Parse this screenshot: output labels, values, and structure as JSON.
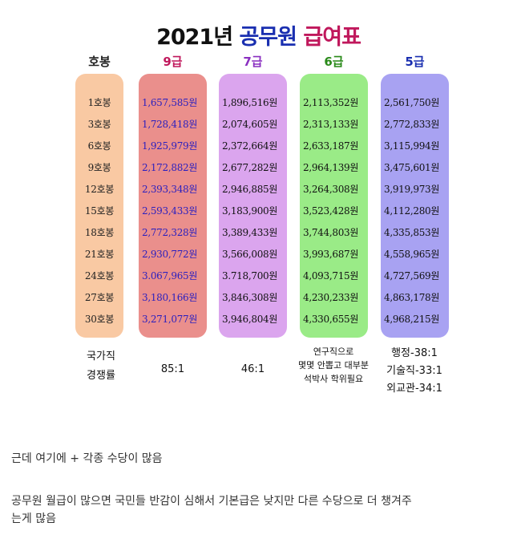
{
  "title": {
    "year": "2021년",
    "part2": "공무원",
    "part3": "급여표"
  },
  "headers": {
    "ho": "호봉",
    "g9": "9급",
    "g7": "7급",
    "g6": "6급",
    "g5": "5급"
  },
  "header_colors": {
    "ho": "#222222",
    "g9": "#c0185c",
    "g7": "#8a2fc0",
    "g6": "#2a8a1a",
    "g5": "#1a2fb0"
  },
  "rows": [
    {
      "ho": "1호봉",
      "g9": "1,657,585원",
      "g7": "1,896,516원",
      "g6": "2,113,352원",
      "g5": "2,561,750원"
    },
    {
      "ho": "3호봉",
      "g9": "1,728,418원",
      "g7": "2,074,605원",
      "g6": "2,313,133원",
      "g5": "2,772,833원"
    },
    {
      "ho": "6호봉",
      "g9": "1,925,979원",
      "g7": "2,372,664원",
      "g6": "2,633,187원",
      "g5": "3,115,994원"
    },
    {
      "ho": "9호봉",
      "g9": "2,172,882원",
      "g7": "2,677,282원",
      "g6": "2,964,139원",
      "g5": "3,475,601원"
    },
    {
      "ho": "12호봉",
      "g9": "2,393,348원",
      "g7": "2,946,885원",
      "g6": "3,264,308원",
      "g5": "3,919,973원"
    },
    {
      "ho": "15호봉",
      "g9": "2,593,433원",
      "g7": "3,183,900원",
      "g6": "3,523,428원",
      "g5": "4,112,280원"
    },
    {
      "ho": "18호봉",
      "g9": "2,772,328원",
      "g7": "3,389,433원",
      "g6": "3,744,803원",
      "g5": "4,335,853원"
    },
    {
      "ho": "21호봉",
      "g9": "2,930,772원",
      "g7": "3,566,008원",
      "g6": "3,993,687원",
      "g5": "4,558,965원"
    },
    {
      "ho": "24호봉",
      "g9": "3.067,965원",
      "g7": "3.718,700원",
      "g6": "4,093,715원",
      "g5": "4,727,569원"
    },
    {
      "ho": "27호봉",
      "g9": "3,180,166원",
      "g7": "3,846,308원",
      "g6": "4,230,233원",
      "g5": "4,863,178원"
    },
    {
      "ho": "30호봉",
      "g9": "3,271,077원",
      "g7": "3,946,804원",
      "g6": "4,330,655원",
      "g5": "4,968,215원"
    }
  ],
  "footer": {
    "label_line1": "국가직",
    "label_line2": "경쟁률",
    "g9": "85:1",
    "g7": "46:1",
    "g6_line1": "연구직으로",
    "g6_line2": "몇몇 안뽑고 대부분",
    "g6_line3": "석박사 학위필요",
    "g5_line1": "행정-38:1",
    "g5_line2": "기술직-33:1",
    "g5_line3": "외교관-34:1"
  },
  "notes": {
    "line1": "근데 여기에 + 각종 수당이 많음",
    "line2": "공무원 월급이 많으면 국민들 반감이 심해서 기본급은 낮지만 다른 수당으로 더 챙겨주",
    "line3": "는게 많음"
  }
}
